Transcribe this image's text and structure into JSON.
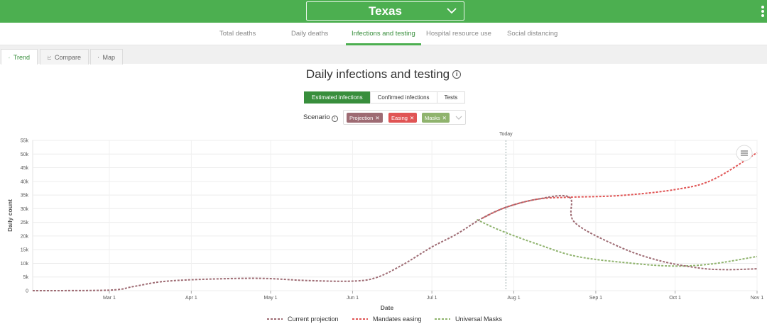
{
  "header": {
    "location": "Texas"
  },
  "nav": {
    "tabs": [
      {
        "label": "Total deaths"
      },
      {
        "label": "Daily deaths"
      },
      {
        "label": "Infections and testing"
      },
      {
        "label": "Hospital resource use"
      },
      {
        "label": "Social distancing"
      }
    ],
    "active": "Infections and testing"
  },
  "views": {
    "tabs": [
      {
        "label": "Trend"
      },
      {
        "label": "Compare"
      },
      {
        "label": "Map"
      }
    ],
    "active": "Trend"
  },
  "metric": {
    "options": [
      {
        "label": "Estimated infections"
      },
      {
        "label": "Confirmed infections"
      },
      {
        "label": "Tests"
      }
    ],
    "active": "Estimated infections"
  },
  "scenario": {
    "label": "Scenario",
    "chips": [
      {
        "label": "Projection",
        "color": "#9e6b73"
      },
      {
        "label": "Easing",
        "color": "#e05454"
      },
      {
        "label": "Masks",
        "color": "#8fb36d"
      }
    ]
  },
  "chart_data": {
    "type": "line",
    "title": "Daily infections and testing",
    "xlabel": "Date",
    "ylabel": "Daily count",
    "x_ticks": [
      "Mar 1",
      "Apr 1",
      "May 1",
      "Jun 1",
      "Jul 1",
      "Aug 1",
      "Sep 1",
      "Oct 1",
      "Nov 1"
    ],
    "y_ticks": [
      "0",
      "5k",
      "10k",
      "15k",
      "20k",
      "25k",
      "30k",
      "35k",
      "40k",
      "45k",
      "50k",
      "55k"
    ],
    "ylim": [
      0,
      55000
    ],
    "xlim": [
      "2020-02-01",
      "2020-11-01"
    ],
    "today": {
      "label": "Today",
      "date": "2020-07-29"
    },
    "grid": true,
    "legend_position": "bottom",
    "series": [
      {
        "name": "Current projection",
        "color": "#9e6b73",
        "points": [
          [
            "2020-02-01",
            0
          ],
          [
            "2020-03-01",
            200
          ],
          [
            "2020-03-10",
            1500
          ],
          [
            "2020-03-20",
            3200
          ],
          [
            "2020-04-01",
            4000
          ],
          [
            "2020-04-20",
            4500
          ],
          [
            "2020-05-01",
            4400
          ],
          [
            "2020-05-15",
            3700
          ],
          [
            "2020-06-01",
            3500
          ],
          [
            "2020-06-10",
            4800
          ],
          [
            "2020-06-20",
            9500
          ],
          [
            "2020-07-01",
            16000
          ],
          [
            "2020-07-10",
            20500
          ],
          [
            "2020-07-20",
            26500
          ],
          [
            "2020-07-29",
            30500
          ],
          [
            "2020-08-10",
            33500
          ],
          [
            "2020-08-22",
            34200
          ],
          [
            "2020-08-24",
            25000
          ],
          [
            "2020-09-10",
            16000
          ],
          [
            "2020-09-25",
            11000
          ],
          [
            "2020-10-10",
            8300
          ],
          [
            "2020-10-20",
            7700
          ],
          [
            "2020-11-01",
            8000
          ]
        ]
      },
      {
        "name": "Mandates easing",
        "color": "#e05454",
        "points": [
          [
            "2020-07-20",
            26500
          ],
          [
            "2020-07-29",
            30500
          ],
          [
            "2020-08-10",
            33500
          ],
          [
            "2020-08-22",
            34200
          ],
          [
            "2020-09-10",
            34800
          ],
          [
            "2020-10-01",
            37000
          ],
          [
            "2020-10-15",
            40500
          ],
          [
            "2020-11-01",
            50500
          ]
        ]
      },
      {
        "name": "Universal Masks",
        "color": "#8fb36d",
        "points": [
          [
            "2020-07-18",
            26000
          ],
          [
            "2020-07-27",
            22000
          ],
          [
            "2020-08-10",
            17000
          ],
          [
            "2020-08-25",
            12500
          ],
          [
            "2020-09-15",
            10000
          ],
          [
            "2020-10-01",
            9000
          ],
          [
            "2020-10-15",
            9800
          ],
          [
            "2020-11-01",
            12500
          ]
        ]
      }
    ]
  }
}
